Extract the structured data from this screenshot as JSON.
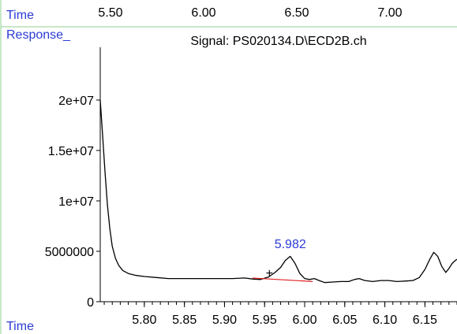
{
  "header": {
    "top_time_label": "Time",
    "top_time_ticks": [
      "5.50",
      "6.00",
      "6.50",
      "7.00"
    ],
    "response_label": "Response_",
    "signal_title": "Signal: PS020134.D\\ECD2B.ch",
    "bottom_time_label": "Time"
  },
  "colors": {
    "frame": "#8fd28f",
    "blue_text": "#2b3bd6",
    "trace": "#000000",
    "baseline": "#e02020"
  },
  "chart_data": {
    "type": "line",
    "title": "Signal: PS020134.D\\ECD2B.ch",
    "xlabel": "Time",
    "ylabel": "Response_",
    "xlim": [
      5.745,
      6.19
    ],
    "ylim": [
      0,
      22500000
    ],
    "y_ticks": [
      0,
      5000000,
      10000000,
      15000000,
      20000000
    ],
    "y_tick_labels": [
      "0",
      "5000000",
      "1e+07",
      "1.5e+07",
      "2e+07"
    ],
    "x_ticks": [
      5.8,
      5.85,
      5.9,
      5.95,
      6.0,
      6.05,
      6.1,
      6.15
    ],
    "x_tick_labels": [
      "5.80",
      "5.85",
      "5.90",
      "5.95",
      "6.00",
      "6.05",
      "6.10",
      "6.15"
    ],
    "grid": false,
    "series": [
      {
        "x": [
          5.745,
          5.748,
          5.751,
          5.754,
          5.757,
          5.76,
          5.764,
          5.768,
          5.773,
          5.78,
          5.79,
          5.8,
          5.815,
          5.83,
          5.85,
          5.87,
          5.89,
          5.91,
          5.925,
          5.935,
          5.945,
          5.955,
          5.963,
          5.97,
          5.976,
          5.982,
          5.988,
          5.994,
          6.0,
          6.006,
          6.012,
          6.018,
          6.025,
          6.035,
          6.045,
          6.055,
          6.062,
          6.068,
          6.075,
          6.085,
          6.095,
          6.105,
          6.115,
          6.125,
          6.135,
          6.143,
          6.15,
          6.156,
          6.161,
          6.166,
          6.171,
          6.176,
          6.18,
          6.184,
          6.188,
          6.19
        ],
        "y": [
          20000000,
          16500000,
          12800000,
          9600000,
          7200000,
          5500000,
          4300000,
          3600000,
          3100000,
          2800000,
          2600000,
          2500000,
          2400000,
          2300000,
          2300000,
          2300000,
          2300000,
          2300000,
          2350000,
          2250000,
          2200000,
          2450000,
          2900000,
          3400000,
          4100000,
          4500000,
          3800000,
          2800000,
          2300000,
          2200000,
          2300000,
          2100000,
          1900000,
          1950000,
          2000000,
          2000000,
          2200000,
          2300000,
          2100000,
          2000000,
          2100000,
          2100000,
          2000000,
          2050000,
          2100000,
          2400000,
          3200000,
          4200000,
          4900000,
          4500000,
          3500000,
          2900000,
          3300000,
          3800000,
          4100000,
          4200000
        ]
      }
    ],
    "annotations": [
      {
        "text": "5.982",
        "x": 5.982,
        "y": 5300000
      }
    ],
    "marker": {
      "symbol": "+",
      "x": 5.956,
      "y": 2900000
    },
    "baseline_segment": {
      "x": [
        5.935,
        6.01
      ],
      "y": [
        2350000,
        2000000
      ]
    }
  }
}
